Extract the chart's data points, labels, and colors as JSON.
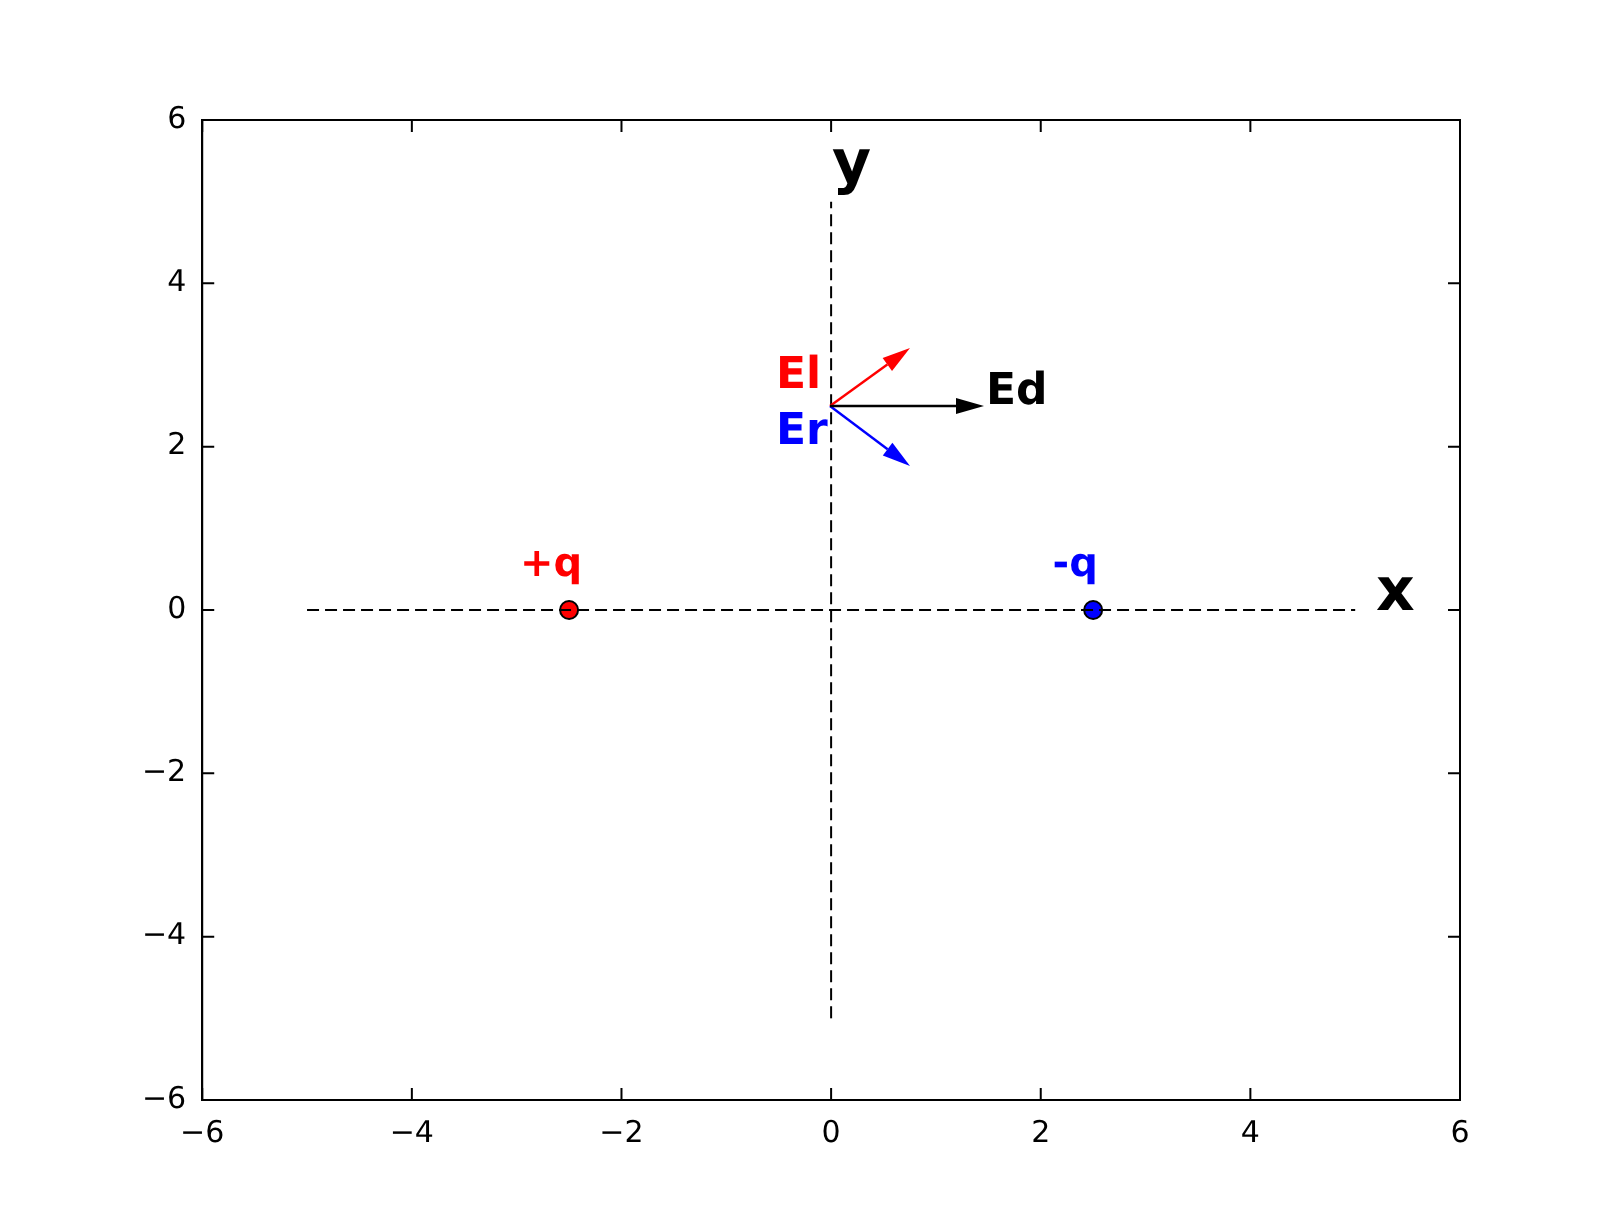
{
  "chart_data": {
    "type": "scatter",
    "xlim": [
      -6,
      6
    ],
    "ylim": [
      -6,
      6
    ],
    "xticks": [
      {
        "value": -6,
        "label": "−6"
      },
      {
        "value": -4,
        "label": "−4"
      },
      {
        "value": -2,
        "label": "−2"
      },
      0,
      2,
      4,
      6
    ],
    "yticks": [
      {
        "value": -6,
        "label": "−6"
      },
      {
        "value": -4,
        "label": "−4"
      },
      {
        "value": -2,
        "label": "−2"
      },
      0,
      2,
      4,
      6
    ],
    "grid": false,
    "legend": false,
    "series": [
      {
        "type": "line",
        "color": "#000000",
        "x": [
          -5,
          5
        ],
        "values": [
          0,
          0
        ],
        "line_style": "dashed",
        "marker": "none"
      },
      {
        "type": "line",
        "color": "#000000",
        "x": [
          0,
          0
        ],
        "values": [
          -5,
          5
        ],
        "line_style": "dashed",
        "marker": "none"
      },
      {
        "name": "+q",
        "color": "#ff0000",
        "x": [
          -2.5
        ],
        "values": [
          0
        ],
        "marker": "circle"
      },
      {
        "name": "-q",
        "color": "#0000ff",
        "x": [
          2.5
        ],
        "values": [
          0
        ],
        "marker": "circle"
      }
    ],
    "annotations": [
      "El",
      "Er",
      "Ed",
      "x",
      "y"
    ]
  }
}
